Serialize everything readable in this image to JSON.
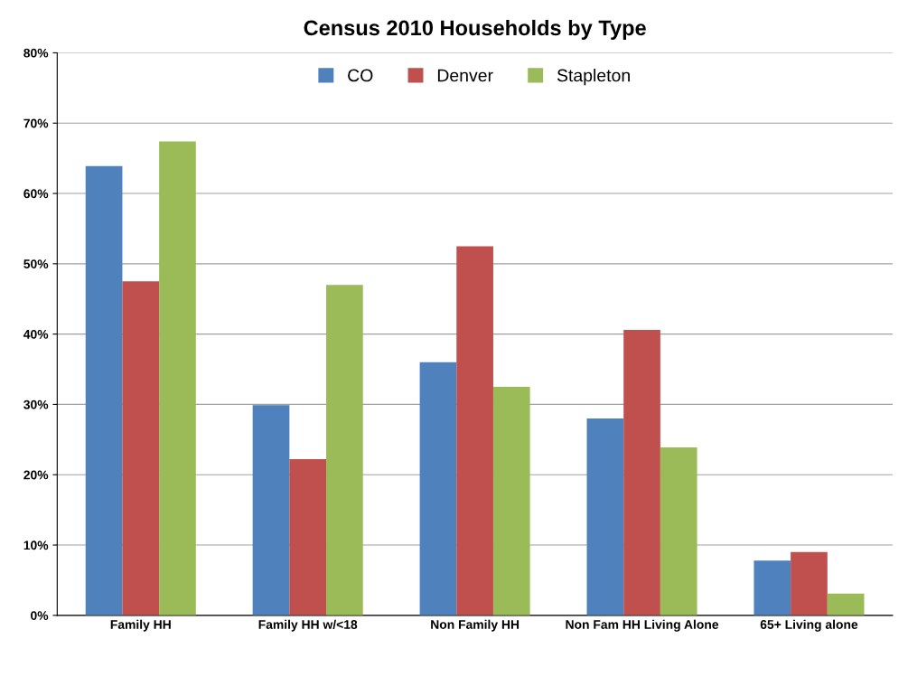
{
  "chart_data": {
    "type": "bar",
    "title": "Census 2010 Households by Type",
    "categories": [
      "Family HH",
      "Family HH w/<18",
      "Non Family HH",
      "Non Fam HH Living Alone",
      "65+ Living alone"
    ],
    "series": [
      {
        "name": "CO",
        "color": "#4f81bd",
        "values": [
          63.9,
          29.9,
          36.0,
          28.0,
          7.8
        ]
      },
      {
        "name": "Denver",
        "color": "#c0504d",
        "values": [
          47.5,
          22.2,
          52.5,
          40.6,
          9.0
        ]
      },
      {
        "name": "Stapleton",
        "color": "#9bbb59",
        "values": [
          67.4,
          47.0,
          32.5,
          23.9,
          3.1
        ]
      }
    ],
    "ylim": [
      0,
      80
    ],
    "yticks": [
      {
        "value": 0,
        "label": "0%"
      },
      {
        "value": 10,
        "label": "10%"
      },
      {
        "value": 20,
        "label": "20%"
      },
      {
        "value": 30,
        "label": "30%"
      },
      {
        "value": 40,
        "label": "40%"
      },
      {
        "value": 50,
        "label": "50%"
      },
      {
        "value": 60,
        "label": "60%"
      },
      {
        "value": 70,
        "label": "70%"
      },
      {
        "value": 80,
        "label": "80%"
      }
    ],
    "grid": "y",
    "legend": "top"
  }
}
